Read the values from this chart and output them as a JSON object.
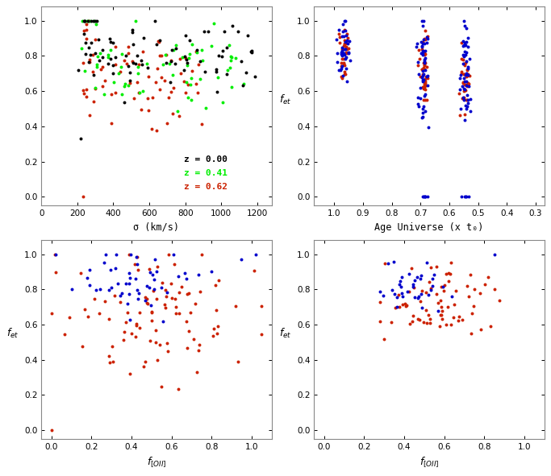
{
  "panel1": {
    "xlabel": "σ (km/s)",
    "xlim": [
      0,
      1280
    ],
    "ylim": [
      -0.05,
      1.08
    ],
    "yticks": [
      0.0,
      0.2,
      0.4,
      0.6,
      0.8,
      1.0
    ],
    "xticks": [
      0,
      200,
      400,
      600,
      800,
      1000,
      1200
    ],
    "legend": [
      {
        "label": "z = 0.00",
        "color": "#000000"
      },
      {
        "label": "z = 0.41",
        "color": "#00ee00"
      },
      {
        "label": "z = 0.62",
        "color": "#cc2200"
      }
    ]
  },
  "panel2": {
    "xlabel": "Age Universe (x t₀)",
    "ylabel": "f_et",
    "xlim": [
      1.07,
      0.27
    ],
    "ylim": [
      -0.05,
      1.08
    ],
    "yticks": [
      0.0,
      0.2,
      0.4,
      0.6,
      0.8,
      1.0
    ],
    "xticks": [
      1.0,
      0.9,
      0.8,
      0.7,
      0.6,
      0.5,
      0.4,
      0.3
    ]
  },
  "panel3": {
    "xlabel": "f_[OII]",
    "ylabel": "f_et",
    "xlim": [
      -0.05,
      1.1
    ],
    "ylim": [
      -0.05,
      1.08
    ],
    "yticks": [
      0.0,
      0.2,
      0.4,
      0.6,
      0.8,
      1.0
    ],
    "xticks": [
      0.0,
      0.2,
      0.4,
      0.6,
      0.8,
      1.0
    ]
  },
  "panel4": {
    "xlabel": "f_[OII]",
    "ylabel": "f_et",
    "xlim": [
      -0.05,
      1.1
    ],
    "ylim": [
      -0.05,
      1.08
    ],
    "yticks": [
      0.0,
      0.2,
      0.4,
      0.6,
      0.8,
      1.0
    ],
    "xticks": [
      0.0,
      0.2,
      0.4,
      0.6,
      0.8,
      1.0
    ]
  },
  "colors": {
    "black": "#000000",
    "green": "#00ee00",
    "red": "#cc2200",
    "blue": "#0000cc"
  },
  "marker_size": 8,
  "marker": "o"
}
